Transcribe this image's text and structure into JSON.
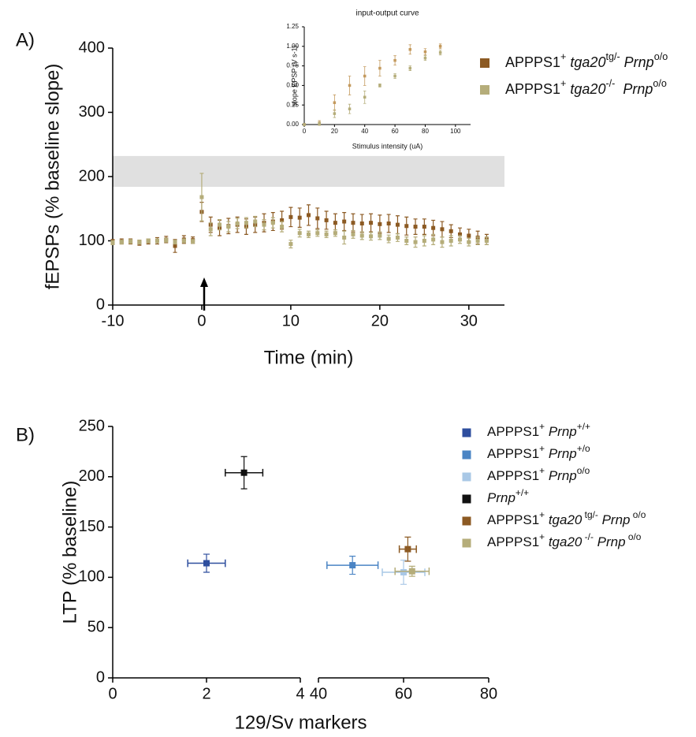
{
  "chart_data": [
    {
      "type": "scatter",
      "panel_label": "A)",
      "y_label": "fEPSPs (% baseline slope)",
      "x_label": "Time (min)",
      "xlim": [
        -10,
        34
      ],
      "ylim": [
        0,
        400
      ],
      "xticks": [
        -10,
        0,
        10,
        20,
        30
      ],
      "yticks": [
        0,
        100,
        200,
        300,
        400
      ],
      "shaded_band": [
        184,
        232
      ],
      "shaded_band_color": "#e0e0e0",
      "x": [
        -10,
        -9,
        -8,
        -7,
        -6,
        -5,
        -4,
        -3,
        -2,
        -1,
        0,
        1,
        2,
        3,
        4,
        5,
        6,
        7,
        8,
        9,
        10,
        11,
        12,
        13,
        14,
        15,
        16,
        17,
        18,
        19,
        20,
        21,
        22,
        23,
        24,
        25,
        26,
        27,
        28,
        29,
        30,
        31,
        32
      ],
      "series": [
        {
          "name": [
            {
              "text": "APPPS1"
            },
            {
              "text": "+",
              "style": "sup"
            },
            {
              "text": " tga20",
              "style": "italic"
            },
            {
              "text": "tg/-",
              "style": "sup"
            },
            {
              "text": " Prnp",
              "style": "italic"
            },
            {
              "text": "o/o",
              "style": "sup"
            }
          ],
          "color": "#8c5a23",
          "values": [
            98,
            99,
            99,
            97,
            99,
            100,
            102,
            92,
            102,
            101,
            145,
            125,
            120,
            123,
            125,
            122,
            125,
            128,
            130,
            132,
            137,
            136,
            140,
            135,
            132,
            128,
            130,
            128,
            127,
            128,
            126,
            127,
            125,
            123,
            122,
            122,
            120,
            118,
            115,
            110,
            108,
            105,
            102
          ],
          "errors": [
            4,
            4,
            4,
            4,
            4,
            5,
            5,
            10,
            6,
            5,
            15,
            12,
            12,
            12,
            12,
            12,
            12,
            14,
            14,
            14,
            15,
            15,
            16,
            16,
            14,
            14,
            14,
            14,
            14,
            14,
            14,
            14,
            14,
            14,
            12,
            12,
            12,
            12,
            10,
            10,
            10,
            10,
            8
          ]
        },
        {
          "name": [
            {
              "text": "APPPS1"
            },
            {
              "text": "+",
              "style": "sup"
            },
            {
              "text": " tga20",
              "style": "italic"
            },
            {
              "text": "-/-",
              "style": "sup"
            },
            {
              "text": "  Prnp",
              "style": "italic"
            },
            {
              "text": "o/o",
              "style": "sup"
            }
          ],
          "color": "#b5ad7a",
          "values": [
            97,
            98,
            99,
            98,
            100,
            100,
            101,
            98,
            100,
            99,
            168,
            118,
            125,
            122,
            127,
            128,
            130,
            125,
            128,
            122,
            95,
            112,
            110,
            112,
            110,
            112,
            105,
            110,
            108,
            107,
            108,
            103,
            105,
            100,
            98,
            100,
            102,
            98,
            100,
            102,
            98,
            100,
            100
          ],
          "errors": [
            3,
            3,
            3,
            3,
            3,
            3,
            3,
            3,
            3,
            3,
            37,
            10,
            8,
            8,
            8,
            8,
            8,
            8,
            8,
            8,
            6,
            6,
            5,
            5,
            5,
            5,
            10,
            6,
            6,
            6,
            6,
            6,
            6,
            6,
            8,
            8,
            8,
            8,
            8,
            6,
            6,
            6,
            6
          ]
        }
      ]
    },
    {
      "type": "scatter",
      "title": "input-output curve",
      "y_label": "slope EPSP (V s-1)",
      "x_label": "Stimulus intensity (uA)",
      "xlim": [
        0,
        110
      ],
      "ylim": [
        0,
        1.25
      ],
      "xticks": [
        0,
        20,
        40,
        60,
        80,
        100
      ],
      "yticks": [
        {
          "value": 0,
          "label": "0.00"
        },
        0.25,
        {
          "value": 0.5,
          "label": "0.50"
        },
        0.75,
        {
          "value": 1,
          "label": "1.00"
        },
        1.25
      ],
      "x": [
        0,
        10,
        20,
        30,
        40,
        50,
        60,
        70,
        80,
        90
      ],
      "series": [
        {
          "color": "#c49a5e",
          "values": [
            0,
            0.02,
            0.28,
            0.5,
            0.62,
            0.72,
            0.82,
            0.96,
            0.93,
            1.0
          ],
          "errors": [
            0.01,
            0.03,
            0.1,
            0.12,
            0.12,
            0.1,
            0.06,
            0.06,
            0.04,
            0.03
          ]
        },
        {
          "color": "#b5ad7a",
          "values": [
            0,
            0.01,
            0.14,
            0.2,
            0.35,
            0.5,
            0.62,
            0.72,
            0.85,
            0.92
          ],
          "errors": [
            0.01,
            0.02,
            0.05,
            0.06,
            0.08,
            0.02,
            0.03,
            0.03,
            0.03,
            0.03
          ]
        }
      ]
    },
    {
      "type": "scatter",
      "panel_label": "B)",
      "y_label": "LTP (% baseline)",
      "x_label": "129/Sv markers",
      "xlim": [
        0,
        80
      ],
      "axis_break": [
        4,
        40
      ],
      "ylim": [
        0,
        250
      ],
      "xticks": [
        0,
        2,
        4,
        40,
        60,
        80
      ],
      "yticks": [
        0,
        50,
        100,
        150,
        200,
        250
      ],
      "series": [
        {
          "name": [
            {
              "text": "APPPS1"
            },
            {
              "text": "+",
              "style": "sup"
            },
            {
              "text": " Prnp",
              "style": "italic"
            },
            {
              "text": "+/+",
              "style": "sup"
            }
          ],
          "color": "#2e4e9e",
          "x": [
            2
          ],
          "x_errors": [
            0.4
          ],
          "values": [
            114
          ],
          "errors": [
            9
          ]
        },
        {
          "name": [
            {
              "text": "APPPS1"
            },
            {
              "text": "+",
              "style": "sup"
            },
            {
              "text": " Prnp",
              "style": "italic"
            },
            {
              "text": "+/o",
              "style": "sup"
            }
          ],
          "color": "#4a84c4",
          "x": [
            48
          ],
          "x_errors": [
            6
          ],
          "values": [
            112
          ],
          "errors": [
            9
          ]
        },
        {
          "name": [
            {
              "text": "APPPS1"
            },
            {
              "text": "+",
              "style": "sup"
            },
            {
              "text": " Prnp",
              "style": "italic"
            },
            {
              "text": "o/o",
              "style": "sup"
            }
          ],
          "color": "#a9c8e6",
          "x": [
            60
          ],
          "x_errors": [
            5
          ],
          "values": [
            105
          ],
          "errors": [
            12
          ]
        },
        {
          "name": [
            {
              "text": "Prnp",
              "style": "italic"
            },
            {
              "text": "+/+",
              "style": "sup"
            }
          ],
          "color": "#111111",
          "x": [
            2.8
          ],
          "x_errors": [
            0.4
          ],
          "values": [
            204
          ],
          "errors": [
            16
          ]
        },
        {
          "name": [
            {
              "text": "APPPS1"
            },
            {
              "text": "+",
              "style": "sup"
            },
            {
              "text": " tga20",
              "style": "italic"
            },
            {
              "text": " tg/-",
              "style": "sup"
            },
            {
              "text": " Prnp",
              "style": "italic"
            },
            {
              "text": " o/o",
              "style": "sup"
            }
          ],
          "color": "#8c5a23",
          "x": [
            61
          ],
          "x_errors": [
            2
          ],
          "values": [
            128
          ],
          "errors": [
            12
          ]
        },
        {
          "name": [
            {
              "text": "APPPS1"
            },
            {
              "text": "+",
              "style": "sup"
            },
            {
              "text": " tga20",
              "style": "italic"
            },
            {
              "text": " -/-",
              "style": "sup"
            },
            {
              "text": " Prnp",
              "style": "italic"
            },
            {
              "text": " o/o",
              "style": "sup"
            }
          ],
          "color": "#b5ad7a",
          "x": [
            62
          ],
          "x_errors": [
            4
          ],
          "values": [
            106
          ],
          "errors": [
            5
          ]
        }
      ]
    }
  ]
}
